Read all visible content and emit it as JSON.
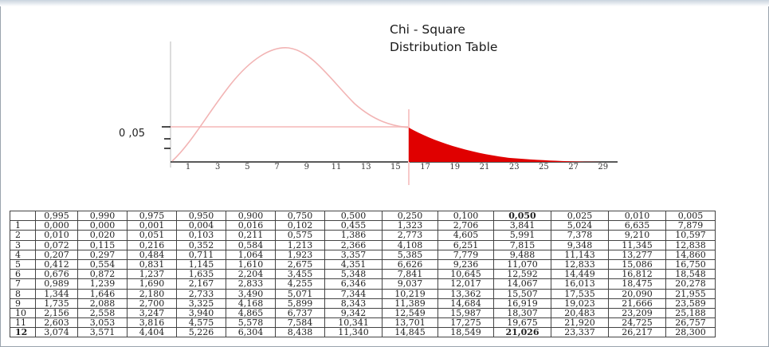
{
  "title_line1": "Chi - Square",
  "title_line2": "Distribution Table",
  "p_label": "0 ,05",
  "x_ticks": [
    "1",
    "3",
    "5",
    "7",
    "9",
    "11",
    "13",
    "15",
    "17",
    "19",
    "21",
    "23",
    "25",
    "27",
    "29"
  ],
  "colors": {
    "curve": "#f2b4b4",
    "shade": "#e00000",
    "line": "#f7c9c9"
  },
  "table": {
    "columns": [
      "",
      "0,995",
      "0,990",
      "0,975",
      "0,950",
      "0,900",
      "0,750",
      "0,500",
      "0,250",
      "0,100",
      "0,050",
      "0,025",
      "0,010",
      "0,005"
    ],
    "rows": [
      [
        "1",
        "0,000",
        "0,000",
        "0,001",
        "0,004",
        "0,016",
        "0,102",
        "0,455",
        "1,323",
        "2,706",
        "3,841",
        "5,024",
        "6,635",
        "7,879"
      ],
      [
        "2",
        "0,010",
        "0,020",
        "0,051",
        "0,103",
        "0,211",
        "0,575",
        "1,386",
        "2,773",
        "4,605",
        "5,991",
        "7,378",
        "9,210",
        "10,597"
      ],
      [
        "3",
        "0,072",
        "0,115",
        "0,216",
        "0,352",
        "0,584",
        "1,213",
        "2,366",
        "4,108",
        "6,251",
        "7,815",
        "9,348",
        "11,345",
        "12,838"
      ],
      [
        "4",
        "0,207",
        "0,297",
        "0,484",
        "0,711",
        "1,064",
        "1,923",
        "3,357",
        "5,385",
        "7,779",
        "9,488",
        "11,143",
        "13,277",
        "14,860"
      ],
      [
        "5",
        "0,412",
        "0,554",
        "0,831",
        "1,145",
        "1,610",
        "2,675",
        "4,351",
        "6,626",
        "9,236",
        "11,070",
        "12,833",
        "15,086",
        "16,750"
      ],
      [
        "6",
        "0,676",
        "0,872",
        "1,237",
        "1,635",
        "2,204",
        "3,455",
        "5,348",
        "7,841",
        "10,645",
        "12,592",
        "14,449",
        "16,812",
        "18,548"
      ],
      [
        "7",
        "0,989",
        "1,239",
        "1,690",
        "2,167",
        "2,833",
        "4,255",
        "6,346",
        "9,037",
        "12,017",
        "14,067",
        "16,013",
        "18,475",
        "20,278"
      ],
      [
        "8",
        "1,344",
        "1,646",
        "2,180",
        "2,733",
        "3,490",
        "5,071",
        "7,344",
        "10,219",
        "13,362",
        "15,507",
        "17,535",
        "20,090",
        "21,955"
      ],
      [
        "9",
        "1,735",
        "2,088",
        "2,700",
        "3,325",
        "4,168",
        "5,899",
        "8,343",
        "11,389",
        "14,684",
        "16,919",
        "19,023",
        "21,666",
        "23,589"
      ],
      [
        "10",
        "2,156",
        "2,558",
        "3,247",
        "3,940",
        "4,865",
        "6,737",
        "9,342",
        "12,549",
        "15,987",
        "18,307",
        "20,483",
        "23,209",
        "25,188"
      ],
      [
        "11",
        "2,603",
        "3,053",
        "3,816",
        "4,575",
        "5,578",
        "7,584",
        "10,341",
        "13,701",
        "17,275",
        "19,675",
        "21,920",
        "24,725",
        "26,757"
      ],
      [
        "12",
        "3,074",
        "3,571",
        "4,404",
        "5,226",
        "6,304",
        "8,438",
        "11,340",
        "14,845",
        "18,549",
        "21,026",
        "23,337",
        "26,217",
        "28,300"
      ]
    ]
  }
}
